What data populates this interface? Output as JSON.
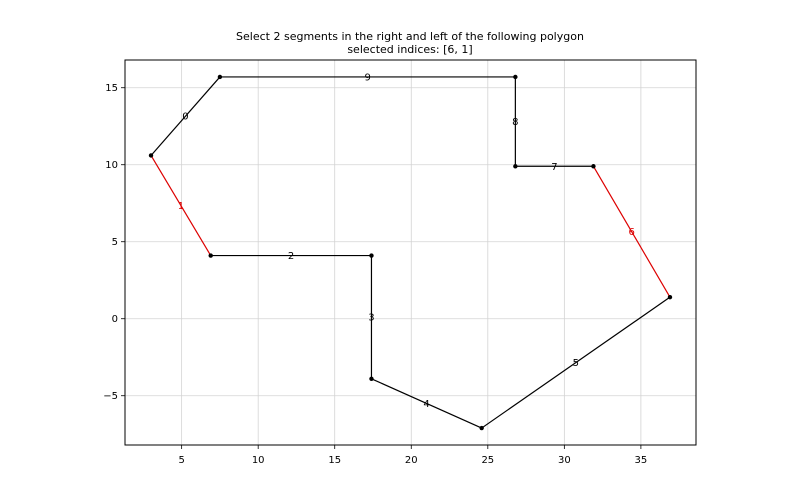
{
  "chart_data": {
    "type": "line",
    "title_lines": [
      "Select 2 segments in the right and left of the following polygon",
      "selected indices: [6, 1]"
    ],
    "xlabel": "",
    "ylabel": "",
    "xlim": [
      1.3,
      38.6
    ],
    "ylim": [
      -8.2,
      16.8
    ],
    "x_ticks": [
      5,
      10,
      15,
      20,
      25,
      30,
      35
    ],
    "y_ticks": [
      -5,
      0,
      5,
      10,
      15
    ],
    "x_tick_labels": [
      "5",
      "10",
      "15",
      "20",
      "25",
      "30",
      "35"
    ],
    "y_tick_labels": [
      "−5",
      "0",
      "5",
      "10",
      "15"
    ],
    "grid": true,
    "default_color": "#000000",
    "selected_color": "#dd0000",
    "selected_indices": [
      6,
      1
    ],
    "vertices": [
      {
        "x": 3.0,
        "y": 10.6
      },
      {
        "x": 6.9,
        "y": 4.1
      },
      {
        "x": 17.4,
        "y": 4.1
      },
      {
        "x": 17.4,
        "y": -3.9
      },
      {
        "x": 24.6,
        "y": -7.1
      },
      {
        "x": 36.9,
        "y": 1.4
      },
      {
        "x": 31.9,
        "y": 9.9
      },
      {
        "x": 26.8,
        "y": 9.9
      },
      {
        "x": 26.8,
        "y": 15.7
      },
      {
        "x": 7.5,
        "y": 15.7
      }
    ],
    "segments": [
      {
        "label": "0",
        "from": 9,
        "to": 0
      },
      {
        "label": "1",
        "from": 0,
        "to": 1
      },
      {
        "label": "2",
        "from": 1,
        "to": 2
      },
      {
        "label": "3",
        "from": 2,
        "to": 3
      },
      {
        "label": "4",
        "from": 3,
        "to": 4
      },
      {
        "label": "5",
        "from": 4,
        "to": 5
      },
      {
        "label": "6",
        "from": 5,
        "to": 6
      },
      {
        "label": "7",
        "from": 6,
        "to": 7
      },
      {
        "label": "8",
        "from": 7,
        "to": 8
      },
      {
        "label": "9",
        "from": 8,
        "to": 9
      }
    ]
  }
}
